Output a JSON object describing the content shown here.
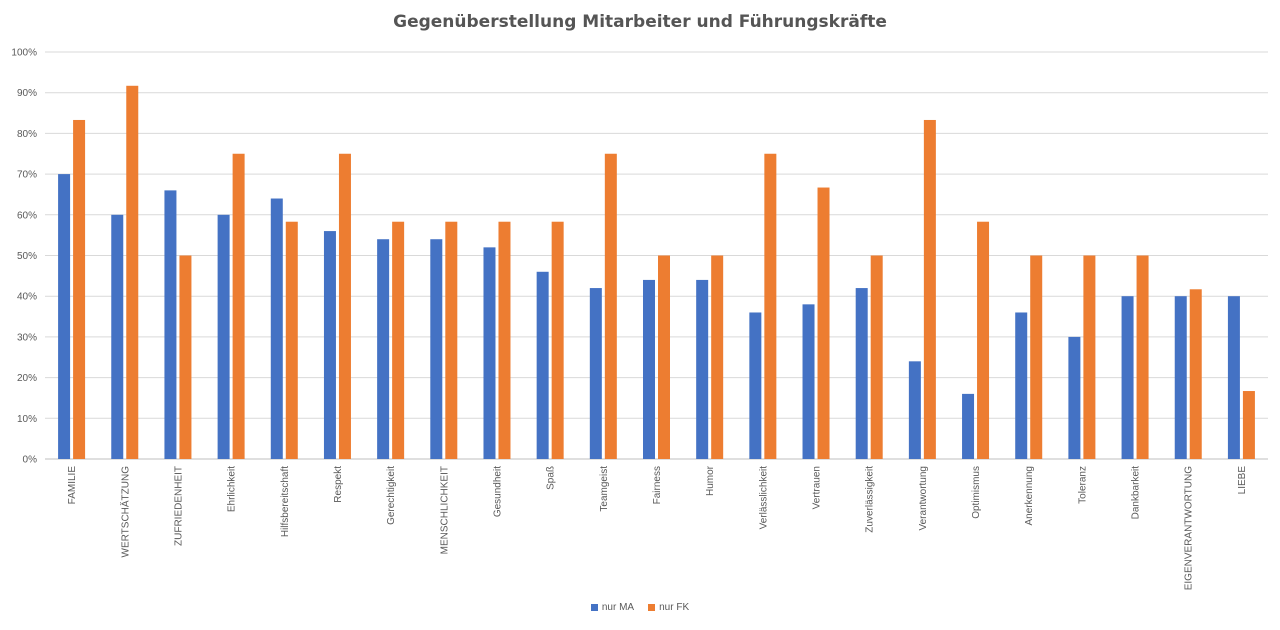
{
  "chart_data": {
    "type": "bar",
    "title": "Gegenüberstellung Mitarbeiter und Führungskräfte",
    "xlabel": "",
    "ylabel": "",
    "ylim": [
      0,
      100
    ],
    "y_tick_labels": [
      "0%",
      "10%",
      "20%",
      "30%",
      "40%",
      "50%",
      "60%",
      "70%",
      "80%",
      "90%",
      "100%"
    ],
    "grid": true,
    "legend_position": "bottom",
    "categories": [
      "FAMILIE",
      "WERTSCHÄTZUNG",
      "ZUFRIEDENHEIT",
      "Ehrlichkeit",
      "Hilfsbereitschaft",
      "Respekt",
      "Gerechtigkeit",
      "MENSCHLICHKEIT",
      "Gesundheit",
      "Spaß",
      "Teamgeist",
      "Fairness",
      "Humor",
      "Verlässlichkeit",
      "Vertrauen",
      "Zuverlässigkeit",
      "Verantwortung",
      "Optimismus",
      "Anerkennung",
      "Toleranz",
      "Dankbarkeit",
      "EIGENVERANTWORTUNG",
      "LIEBE"
    ],
    "series": [
      {
        "name": "nur MA",
        "color": "#4472C4",
        "values": [
          70,
          60,
          66,
          60,
          64,
          56,
          54,
          54,
          52,
          46,
          42,
          44,
          44,
          36,
          38,
          42,
          24,
          16,
          36,
          30,
          40,
          40,
          40
        ]
      },
      {
        "name": "nur FK",
        "color": "#ED7D31",
        "values": [
          83.3,
          91.7,
          50,
          75,
          58.3,
          75,
          58.3,
          58.3,
          58.3,
          58.3,
          75,
          50,
          50,
          75,
          66.7,
          50,
          83.3,
          58.3,
          50,
          50,
          50,
          41.7,
          16.7
        ]
      }
    ]
  }
}
